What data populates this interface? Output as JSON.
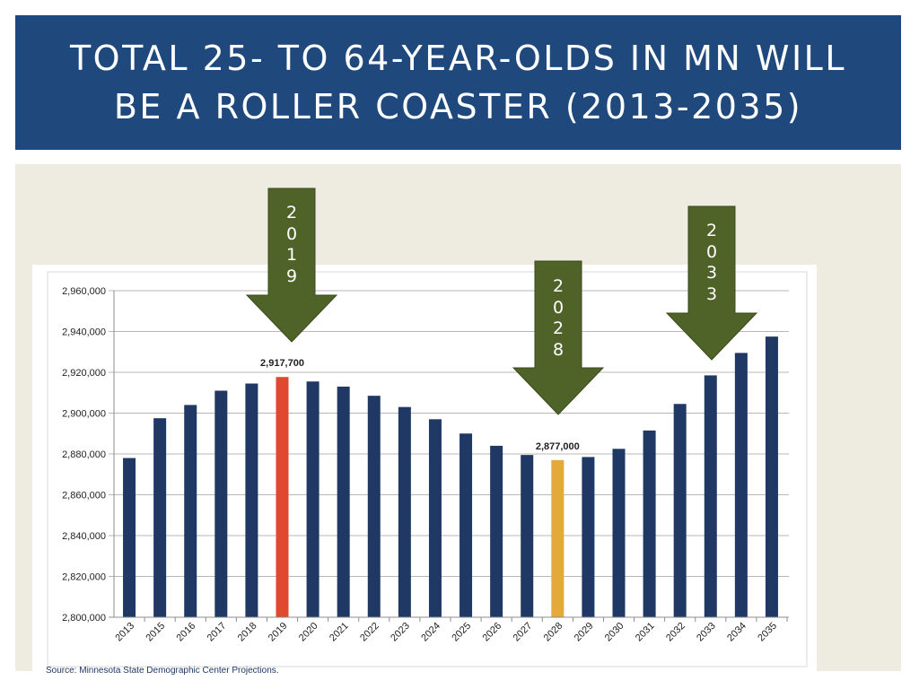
{
  "slide": {
    "title_lines": [
      "TOTAL 25- TO 64-YEAR-OLDS IN MN WILL",
      "BE A ROLLER COASTER (2013-2035)"
    ],
    "source": "Source: Minnesota State Demographic Center Projections."
  },
  "arrows": [
    {
      "label": "2019",
      "digits": [
        "2",
        "0",
        "1",
        "9"
      ]
    },
    {
      "label": "2028",
      "digits": [
        "2",
        "0",
        "2",
        "8"
      ]
    },
    {
      "label": "2033",
      "digits": [
        "2",
        "0",
        "3",
        "3"
      ]
    }
  ],
  "colors": {
    "title_band": "#1f497d",
    "bar_default": "#1f3864",
    "bar_peak": "#e0492f",
    "bar_trough": "#e3a93a",
    "arrow": "#4f6228",
    "background": "#eeece1"
  },
  "chart_data": {
    "type": "bar",
    "title": "",
    "xlabel": "",
    "ylabel": "",
    "ylim": [
      2800000,
      2960000
    ],
    "yticks": [
      2800000,
      2820000,
      2840000,
      2860000,
      2880000,
      2900000,
      2920000,
      2940000,
      2960000
    ],
    "ytick_labels": [
      "2,800,000",
      "2,820,000",
      "2,840,000",
      "2,860,000",
      "2,880,000",
      "2,900,000",
      "2,920,000",
      "2,940,000",
      "2,960,000"
    ],
    "grid": true,
    "categories": [
      "2013",
      "2015",
      "2016",
      "2017",
      "2018",
      "2019",
      "2020",
      "2021",
      "2022",
      "2023",
      "2024",
      "2025",
      "2026",
      "2027",
      "2028",
      "2029",
      "2030",
      "2031",
      "2032",
      "2033",
      "2034",
      "2035"
    ],
    "values": [
      2878000,
      2897500,
      2904000,
      2911000,
      2914500,
      2917700,
      2915500,
      2913000,
      2908500,
      2903000,
      2897000,
      2890000,
      2884000,
      2879500,
      2877000,
      2878500,
      2882500,
      2891500,
      2904500,
      2918500,
      2929500,
      2937500
    ],
    "highlights": [
      {
        "category": "2019",
        "color": "#e0492f",
        "data_label": "2,917,700"
      },
      {
        "category": "2028",
        "color": "#e3a93a",
        "data_label": "2,877,000"
      }
    ]
  }
}
